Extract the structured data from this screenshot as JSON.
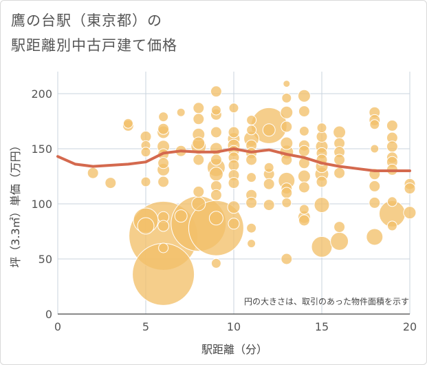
{
  "title_line1": "鷹の台駅（東京都）の",
  "title_line2": "駅距離別中古戸建て価格",
  "colors": {
    "bubble_fill": "#f2c06a",
    "bubble_stroke": "#ffffff",
    "trend_line": "#d4694e",
    "grid": "#c9d3de",
    "axis": "#444444"
  },
  "chart_data": {
    "type": "scatter",
    "xlabel": "駅距離（分）",
    "ylabel": "坪（3.3㎡）単価（万円）",
    "xlim": [
      0,
      20
    ],
    "ylim": [
      0,
      220
    ],
    "xticks": [
      0,
      5,
      10,
      15,
      20
    ],
    "yticks": [
      0,
      50,
      100,
      150,
      200
    ],
    "grid": true,
    "note": "円の大きさは、取引のあった物件面積を示す",
    "trend": {
      "x": [
        0,
        1,
        2,
        3,
        4,
        5,
        6,
        7,
        8,
        9,
        10,
        11,
        12,
        13,
        14,
        15,
        16,
        17,
        18,
        19,
        20
      ],
      "y": [
        143,
        136,
        134,
        135,
        136,
        138,
        146,
        148,
        147,
        147,
        150,
        147,
        149,
        145,
        142,
        137,
        134,
        132,
        130,
        130,
        130
      ]
    },
    "points": [
      {
        "x": 2,
        "y": 128,
        "s": 8
      },
      {
        "x": 3,
        "y": 119,
        "s": 8
      },
      {
        "x": 4,
        "y": 171,
        "s": 8
      },
      {
        "x": 4,
        "y": 173,
        "s": 7
      },
      {
        "x": 5,
        "y": 161,
        "s": 8
      },
      {
        "x": 5,
        "y": 153,
        "s": 7
      },
      {
        "x": 5,
        "y": 147,
        "s": 7
      },
      {
        "x": 5,
        "y": 120,
        "s": 7
      },
      {
        "x": 5,
        "y": 85,
        "s": 18
      },
      {
        "x": 5,
        "y": 80,
        "s": 12
      },
      {
        "x": 6,
        "y": 179,
        "s": 7
      },
      {
        "x": 6,
        "y": 168,
        "s": 8
      },
      {
        "x": 6,
        "y": 165,
        "s": 9
      },
      {
        "x": 6,
        "y": 152,
        "s": 9
      },
      {
        "x": 6,
        "y": 145,
        "s": 8
      },
      {
        "x": 6,
        "y": 137,
        "s": 8
      },
      {
        "x": 6,
        "y": 131,
        "s": 9
      },
      {
        "x": 6,
        "y": 120,
        "s": 8
      },
      {
        "x": 6,
        "y": 88,
        "s": 8
      },
      {
        "x": 6,
        "y": 80,
        "s": 8
      },
      {
        "x": 6,
        "y": 71,
        "s": 50
      },
      {
        "x": 6,
        "y": 60,
        "s": 7
      },
      {
        "x": 6,
        "y": 36,
        "s": 45
      },
      {
        "x": 7,
        "y": 183,
        "s": 6
      },
      {
        "x": 7,
        "y": 148,
        "s": 8
      },
      {
        "x": 7,
        "y": 89,
        "s": 9
      },
      {
        "x": 8,
        "y": 187,
        "s": 8
      },
      {
        "x": 8,
        "y": 177,
        "s": 8
      },
      {
        "x": 8,
        "y": 163,
        "s": 9
      },
      {
        "x": 8,
        "y": 155,
        "s": 9
      },
      {
        "x": 8,
        "y": 152,
        "s": 11
      },
      {
        "x": 8,
        "y": 140,
        "s": 8
      },
      {
        "x": 8,
        "y": 111,
        "s": 8
      },
      {
        "x": 8,
        "y": 100,
        "s": 10
      },
      {
        "x": 8,
        "y": 82,
        "s": 40
      },
      {
        "x": 9,
        "y": 202,
        "s": 8
      },
      {
        "x": 9,
        "y": 185,
        "s": 7
      },
      {
        "x": 9,
        "y": 181,
        "s": 8
      },
      {
        "x": 9,
        "y": 165,
        "s": 8
      },
      {
        "x": 9,
        "y": 150,
        "s": 9
      },
      {
        "x": 9,
        "y": 140,
        "s": 8
      },
      {
        "x": 9,
        "y": 133,
        "s": 13
      },
      {
        "x": 9,
        "y": 127,
        "s": 10
      },
      {
        "x": 9,
        "y": 116,
        "s": 8
      },
      {
        "x": 9,
        "y": 108,
        "s": 8
      },
      {
        "x": 9,
        "y": 87,
        "s": 10
      },
      {
        "x": 9,
        "y": 78,
        "s": 40
      },
      {
        "x": 9,
        "y": 46,
        "s": 7
      },
      {
        "x": 10,
        "y": 187,
        "s": 7
      },
      {
        "x": 10,
        "y": 165,
        "s": 8
      },
      {
        "x": 10,
        "y": 159,
        "s": 9
      },
      {
        "x": 10,
        "y": 153,
        "s": 9
      },
      {
        "x": 10,
        "y": 148,
        "s": 8
      },
      {
        "x": 10,
        "y": 142,
        "s": 8
      },
      {
        "x": 10,
        "y": 135,
        "s": 8
      },
      {
        "x": 10,
        "y": 126,
        "s": 8
      },
      {
        "x": 10,
        "y": 119,
        "s": 8
      },
      {
        "x": 10,
        "y": 97,
        "s": 9
      },
      {
        "x": 10,
        "y": 82,
        "s": 8
      },
      {
        "x": 11,
        "y": 176,
        "s": 7
      },
      {
        "x": 11,
        "y": 167,
        "s": 7
      },
      {
        "x": 11,
        "y": 159,
        "s": 11
      },
      {
        "x": 11,
        "y": 153,
        "s": 8
      },
      {
        "x": 11,
        "y": 146,
        "s": 8
      },
      {
        "x": 11,
        "y": 140,
        "s": 8
      },
      {
        "x": 11,
        "y": 124,
        "s": 7
      },
      {
        "x": 11,
        "y": 108,
        "s": 8
      },
      {
        "x": 11,
        "y": 101,
        "s": 8
      },
      {
        "x": 11,
        "y": 78,
        "s": 7
      },
      {
        "x": 11,
        "y": 64,
        "s": 6
      },
      {
        "x": 12,
        "y": 171,
        "s": 26
      },
      {
        "x": 12,
        "y": 167,
        "s": 9
      },
      {
        "x": 12,
        "y": 133,
        "s": 7
      },
      {
        "x": 12,
        "y": 127,
        "s": 8
      },
      {
        "x": 12,
        "y": 118,
        "s": 8
      },
      {
        "x": 12,
        "y": 99,
        "s": 8
      },
      {
        "x": 13,
        "y": 209,
        "s": 5
      },
      {
        "x": 13,
        "y": 196,
        "s": 7
      },
      {
        "x": 13,
        "y": 183,
        "s": 9
      },
      {
        "x": 13,
        "y": 170,
        "s": 8
      },
      {
        "x": 13,
        "y": 155,
        "s": 9
      },
      {
        "x": 13,
        "y": 147,
        "s": 10
      },
      {
        "x": 13,
        "y": 140,
        "s": 8
      },
      {
        "x": 13,
        "y": 121,
        "s": 12
      },
      {
        "x": 13,
        "y": 114,
        "s": 8
      },
      {
        "x": 13,
        "y": 110,
        "s": 8
      },
      {
        "x": 13,
        "y": 101,
        "s": 7
      },
      {
        "x": 13,
        "y": 50,
        "s": 8
      },
      {
        "x": 14,
        "y": 198,
        "s": 9
      },
      {
        "x": 14,
        "y": 184,
        "s": 8
      },
      {
        "x": 14,
        "y": 166,
        "s": 7
      },
      {
        "x": 14,
        "y": 153,
        "s": 8
      },
      {
        "x": 14,
        "y": 148,
        "s": 8
      },
      {
        "x": 14,
        "y": 137,
        "s": 8
      },
      {
        "x": 14,
        "y": 125,
        "s": 9
      },
      {
        "x": 14,
        "y": 115,
        "s": 8
      },
      {
        "x": 14,
        "y": 95,
        "s": 7
      },
      {
        "x": 14,
        "y": 88,
        "s": 9
      },
      {
        "x": 14,
        "y": 85,
        "s": 8
      },
      {
        "x": 15,
        "y": 169,
        "s": 7
      },
      {
        "x": 15,
        "y": 161,
        "s": 8
      },
      {
        "x": 15,
        "y": 152,
        "s": 9
      },
      {
        "x": 15,
        "y": 146,
        "s": 8
      },
      {
        "x": 15,
        "y": 140,
        "s": 8
      },
      {
        "x": 15,
        "y": 134,
        "s": 9
      },
      {
        "x": 15,
        "y": 127,
        "s": 10
      },
      {
        "x": 15,
        "y": 120,
        "s": 8
      },
      {
        "x": 15,
        "y": 99,
        "s": 11
      },
      {
        "x": 15,
        "y": 61,
        "s": 15
      },
      {
        "x": 16,
        "y": 165,
        "s": 9
      },
      {
        "x": 16,
        "y": 155,
        "s": 8
      },
      {
        "x": 16,
        "y": 147,
        "s": 8
      },
      {
        "x": 16,
        "y": 140,
        "s": 8
      },
      {
        "x": 16,
        "y": 128,
        "s": 8
      },
      {
        "x": 16,
        "y": 79,
        "s": 8
      },
      {
        "x": 16,
        "y": 66,
        "s": 13
      },
      {
        "x": 18,
        "y": 183,
        "s": 8
      },
      {
        "x": 18,
        "y": 176,
        "s": 8
      },
      {
        "x": 18,
        "y": 172,
        "s": 7
      },
      {
        "x": 18,
        "y": 150,
        "s": 6
      },
      {
        "x": 18,
        "y": 127,
        "s": 8
      },
      {
        "x": 18,
        "y": 116,
        "s": 8
      },
      {
        "x": 18,
        "y": 101,
        "s": 8
      },
      {
        "x": 18,
        "y": 70,
        "s": 12
      },
      {
        "x": 19,
        "y": 171,
        "s": 8
      },
      {
        "x": 19,
        "y": 160,
        "s": 8
      },
      {
        "x": 19,
        "y": 152,
        "s": 8
      },
      {
        "x": 19,
        "y": 142,
        "s": 8
      },
      {
        "x": 19,
        "y": 138,
        "s": 8
      },
      {
        "x": 19,
        "y": 131,
        "s": 8
      },
      {
        "x": 19,
        "y": 102,
        "s": 7
      },
      {
        "x": 19,
        "y": 91,
        "s": 19
      },
      {
        "x": 19,
        "y": 80,
        "s": 7
      },
      {
        "x": 20,
        "y": 118,
        "s": 8
      },
      {
        "x": 20,
        "y": 114,
        "s": 8
      },
      {
        "x": 20,
        "y": 92,
        "s": 9
      }
    ]
  }
}
